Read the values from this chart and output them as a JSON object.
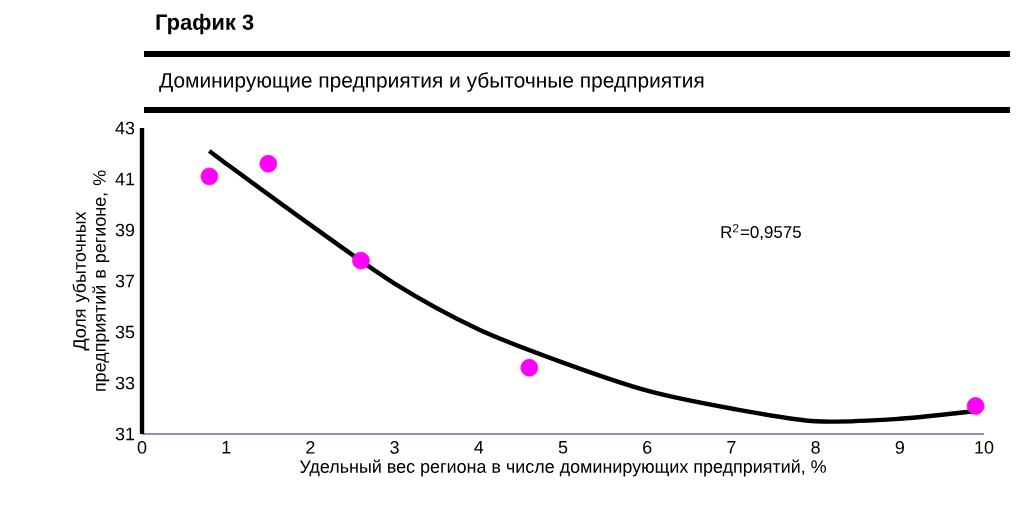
{
  "chart_data": {
    "type": "scatter",
    "title": "График 3",
    "subtitle": "Доминирующие предприятия и убыточные предприятия",
    "xlabel": "Удельный вес региона в числе доминирующих предприятий, %",
    "ylabel": "Доля убыточных предприятий в регионе, %",
    "xlim": [
      0,
      10
    ],
    "ylim": [
      31,
      43
    ],
    "xticks": [
      0,
      1,
      2,
      3,
      4,
      5,
      6,
      7,
      8,
      9,
      10
    ],
    "yticks": [
      31,
      33,
      35,
      37,
      39,
      41,
      43
    ],
    "annotations": [
      "R$^{2}$=0,9575"
    ],
    "series": [
      {
        "type": "line",
        "color": "#000000",
        "marker": "none",
        "line_style": "solid",
        "x": [
          0.8,
          1,
          2,
          3,
          4,
          5,
          6,
          7,
          8,
          9,
          9.9
        ],
        "values": [
          42.1,
          41.6,
          39.2,
          36.9,
          35.1,
          33.8,
          32.7,
          32.0,
          31.5,
          31.6,
          31.9
        ]
      },
      {
        "color": "#ff00ff",
        "marker": "circle",
        "x": [
          0.8,
          1.5,
          2.6,
          4.6,
          9.9
        ],
        "values": [
          41.1,
          41.6,
          37.8,
          33.6,
          32.1
        ]
      }
    ]
  }
}
